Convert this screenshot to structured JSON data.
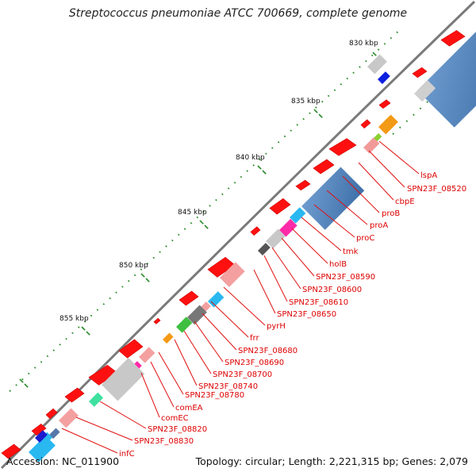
{
  "title": "Streptococcus pneumoniae ATCC 700669, complete genome",
  "footer": {
    "accession": "Accession: NC_011900",
    "summary": "Topology: circular; Length: 2,221,315 bp; Genes: 2,079"
  },
  "ruler_labels": [
    "830 kbp",
    "835 kbp",
    "840 kbp",
    "845 kbp",
    "850 kbp",
    "855 kbp"
  ],
  "gene_labels": [
    "lspA",
    "SPN23F_08520",
    "cbpE",
    "proB",
    "proA",
    "proC",
    "tmk",
    "holB",
    "SPN23F_08590",
    "SPN23F_08600",
    "SPN23F_08610",
    "SPN23F_08650",
    "pyrH",
    "frr",
    "SPN23F_08680",
    "SPN23F_08690",
    "SPN23F_08700",
    "SPN23F_08740",
    "SPN23F_08780",
    "comEA",
    "comEC",
    "SPN23F_08820",
    "SPN23F_08830",
    "infC"
  ],
  "colors": {
    "gene": "#ff0000",
    "backbone": "#666666",
    "tick": "#228822",
    "label": "#dd0000"
  }
}
